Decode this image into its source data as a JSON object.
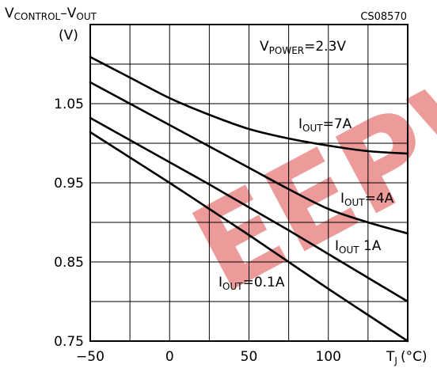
{
  "chart_data": {
    "type": "line",
    "figure_code": "CS08570",
    "ylabel": {
      "main": "V",
      "sub1": "CONTROL",
      "sep": "–V",
      "sub2": "OUT",
      "unit": "(V)"
    },
    "xlabel": {
      "main": "T",
      "sub": "J",
      "unit": "(°C)"
    },
    "condition": {
      "main": "V",
      "sub": "POWER",
      "rest": "=2.3V"
    },
    "xlim": [
      -50,
      150
    ],
    "ylim": [
      0.75,
      1.15
    ],
    "x_ticks": [
      -50,
      0,
      50,
      100
    ],
    "x_tick_labels": [
      "−50",
      "0",
      "50",
      "100"
    ],
    "y_ticks": [
      0.75,
      0.85,
      0.95,
      1.05
    ],
    "y_tick_labels": [
      "0.75",
      "0.85",
      "0.95",
      "1.05"
    ],
    "grid": true,
    "series": [
      {
        "label": {
          "main": "I",
          "sub": "OUT",
          "rest": "=7A"
        },
        "x": [
          -50,
          -25,
          0,
          25,
          50,
          75,
          100,
          125,
          150
        ],
        "y": [
          1.109,
          1.083,
          1.057,
          1.036,
          1.018,
          1.006,
          0.997,
          0.99,
          0.987
        ]
      },
      {
        "label": {
          "main": "I",
          "sub": "OUT",
          "rest": "=4A"
        },
        "x": [
          -50,
          -25,
          0,
          25,
          50,
          75,
          100,
          125,
          150
        ],
        "y": [
          1.077,
          1.05,
          1.023,
          0.996,
          0.969,
          0.942,
          0.917,
          0.9,
          0.886
        ]
      },
      {
        "label": {
          "main": "I",
          "sub": "OUT",
          "rest": " 1A"
        },
        "x": [
          -50,
          -25,
          0,
          25,
          50,
          75,
          100,
          125,
          150
        ],
        "y": [
          1.032,
          1.004,
          0.976,
          0.948,
          0.919,
          0.89,
          0.86,
          0.83,
          0.8
        ]
      },
      {
        "label": {
          "main": "I",
          "sub": "OUT",
          "rest": "=0.1A"
        },
        "x": [
          -50,
          -25,
          0,
          25,
          50,
          75,
          100,
          125,
          150
        ],
        "y": [
          1.014,
          0.982,
          0.95,
          0.917,
          0.884,
          0.85,
          0.816,
          0.783,
          0.75
        ]
      }
    ],
    "watermark": "EEPW",
    "colors": {
      "curve": "#000000",
      "grid": "#000000",
      "watermark": "#e04848"
    }
  }
}
